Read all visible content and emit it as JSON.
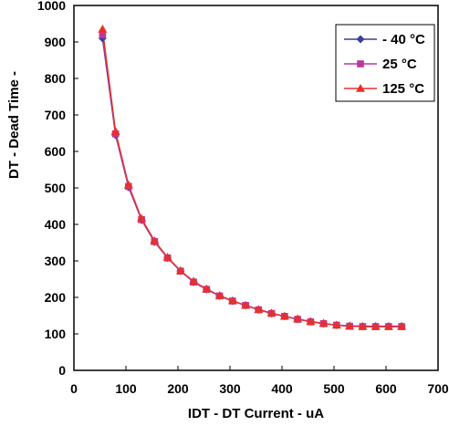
{
  "chart_data": {
    "type": "line",
    "title": "",
    "xlabel": "IDT - DT Current - uA",
    "ylabel": "DT - Dead Time -",
    "xlim": [
      0,
      700
    ],
    "ylim": [
      0,
      1000
    ],
    "xticks": [
      "0",
      "100",
      "200",
      "300",
      "400",
      "500",
      "600",
      "700"
    ],
    "yticks": [
      "0",
      "100",
      "200",
      "300",
      "400",
      "500",
      "600",
      "700",
      "800",
      "900",
      "1000"
    ],
    "grid": false,
    "legend_position": "top-right",
    "x": [
      55,
      80,
      105,
      130,
      155,
      180,
      205,
      230,
      255,
      280,
      305,
      330,
      355,
      380,
      405,
      430,
      455,
      480,
      505,
      530,
      555,
      580,
      605,
      630
    ],
    "series": [
      {
        "name": "- 40 °C",
        "color": "#3a3f9a",
        "marker": "diamond",
        "values": [
          910,
          645,
          502,
          412,
          352,
          308,
          272,
          242,
          222,
          204,
          190,
          178,
          166,
          156,
          148,
          140,
          134,
          128,
          124,
          122,
          121,
          121,
          121,
          121
        ]
      },
      {
        "name": "25 °C",
        "color": "#c0359a",
        "marker": "square",
        "values": [
          920,
          648,
          504,
          413,
          353,
          308,
          272,
          242,
          222,
          204,
          190,
          178,
          166,
          156,
          148,
          140,
          133,
          128,
          124,
          121,
          120,
          120,
          120,
          120
        ]
      },
      {
        "name": "125 °C",
        "color": "#e8302a",
        "marker": "triangle",
        "values": [
          935,
          655,
          508,
          416,
          355,
          310,
          273,
          244,
          223,
          205,
          191,
          178,
          167,
          157,
          148,
          141,
          134,
          129,
          124,
          121,
          120,
          120,
          120,
          120
        ]
      }
    ]
  }
}
